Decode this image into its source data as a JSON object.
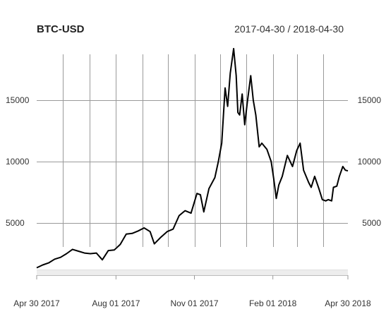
{
  "chart_data": {
    "type": "line",
    "title": "BTC-USD",
    "date_range_label": "2017-04-30 / 2018-04-30",
    "xlabel": "",
    "ylabel": "",
    "x_start": "2017-04-30",
    "x_end": "2018-04-30",
    "ylim": [
      0,
      20000
    ],
    "yticks": [
      5000,
      10000,
      15000
    ],
    "y_tick_labels": [
      "5000",
      "10000",
      "15000"
    ],
    "x_tick_labels": [
      {
        "date": "2017-04-30",
        "label": "Apr 30 2017"
      },
      {
        "date": "2017-08-01",
        "label": "Aug 01 2017"
      },
      {
        "date": "2017-11-01",
        "label": "Nov 01 2017"
      },
      {
        "date": "2018-02-01",
        "label": "Feb 01 2018"
      },
      {
        "date": "2018-04-30",
        "label": "Apr 30 2018"
      }
    ],
    "v_grid_dates": [
      "2017-05-31",
      "2017-07-01",
      "2017-08-01",
      "2017-09-01",
      "2017-10-01",
      "2017-11-01",
      "2017-12-01",
      "2018-01-01",
      "2018-02-01",
      "2018-03-01",
      "2018-04-01"
    ],
    "grid": true,
    "series": [
      {
        "color": "#000000",
        "points": [
          [
            "2017-04-30",
            1350
          ],
          [
            "2017-05-07",
            1580
          ],
          [
            "2017-05-14",
            1750
          ],
          [
            "2017-05-21",
            2050
          ],
          [
            "2017-05-28",
            2200
          ],
          [
            "2017-06-04",
            2500
          ],
          [
            "2017-06-11",
            2850
          ],
          [
            "2017-06-18",
            2700
          ],
          [
            "2017-06-25",
            2550
          ],
          [
            "2017-07-02",
            2500
          ],
          [
            "2017-07-09",
            2550
          ],
          [
            "2017-07-16",
            2000
          ],
          [
            "2017-07-23",
            2750
          ],
          [
            "2017-07-30",
            2800
          ],
          [
            "2017-08-06",
            3250
          ],
          [
            "2017-08-13",
            4100
          ],
          [
            "2017-08-20",
            4150
          ],
          [
            "2017-08-27",
            4350
          ],
          [
            "2017-09-03",
            4600
          ],
          [
            "2017-09-10",
            4300
          ],
          [
            "2017-09-15",
            3300
          ],
          [
            "2017-09-22",
            3800
          ],
          [
            "2017-09-30",
            4300
          ],
          [
            "2017-10-07",
            4500
          ],
          [
            "2017-10-14",
            5600
          ],
          [
            "2017-10-21",
            6000
          ],
          [
            "2017-10-28",
            5800
          ],
          [
            "2017-11-04",
            7400
          ],
          [
            "2017-11-08",
            7300
          ],
          [
            "2017-11-12",
            5900
          ],
          [
            "2017-11-18",
            7800
          ],
          [
            "2017-11-25",
            8700
          ],
          [
            "2017-11-29",
            10000
          ],
          [
            "2017-12-03",
            11500
          ],
          [
            "2017-12-07",
            16000
          ],
          [
            "2017-12-10",
            14500
          ],
          [
            "2017-12-13",
            17200
          ],
          [
            "2017-12-17",
            19200
          ],
          [
            "2017-12-20",
            17000
          ],
          [
            "2017-12-22",
            14000
          ],
          [
            "2017-12-24",
            13800
          ],
          [
            "2017-12-27",
            15500
          ],
          [
            "2017-12-30",
            13000
          ],
          [
            "2018-01-02",
            14800
          ],
          [
            "2018-01-06",
            17000
          ],
          [
            "2018-01-09",
            15000
          ],
          [
            "2018-01-12",
            13800
          ],
          [
            "2018-01-16",
            11200
          ],
          [
            "2018-01-19",
            11500
          ],
          [
            "2018-01-25",
            11000
          ],
          [
            "2018-01-30",
            10000
          ],
          [
            "2018-02-02",
            8600
          ],
          [
            "2018-02-05",
            7000
          ],
          [
            "2018-02-08",
            8100
          ],
          [
            "2018-02-12",
            8800
          ],
          [
            "2018-02-18",
            10500
          ],
          [
            "2018-02-24",
            9600
          ],
          [
            "2018-03-01",
            10900
          ],
          [
            "2018-03-05",
            11500
          ],
          [
            "2018-03-09",
            9300
          ],
          [
            "2018-03-15",
            8300
          ],
          [
            "2018-03-18",
            7900
          ],
          [
            "2018-03-22",
            8800
          ],
          [
            "2018-03-27",
            7800
          ],
          [
            "2018-03-31",
            6900
          ],
          [
            "2018-04-04",
            6800
          ],
          [
            "2018-04-07",
            6900
          ],
          [
            "2018-04-11",
            6800
          ],
          [
            "2018-04-13",
            7900
          ],
          [
            "2018-04-17",
            8000
          ],
          [
            "2018-04-20",
            8800
          ],
          [
            "2018-04-24",
            9600
          ],
          [
            "2018-04-27",
            9300
          ],
          [
            "2018-04-30",
            9250
          ]
        ]
      }
    ]
  }
}
